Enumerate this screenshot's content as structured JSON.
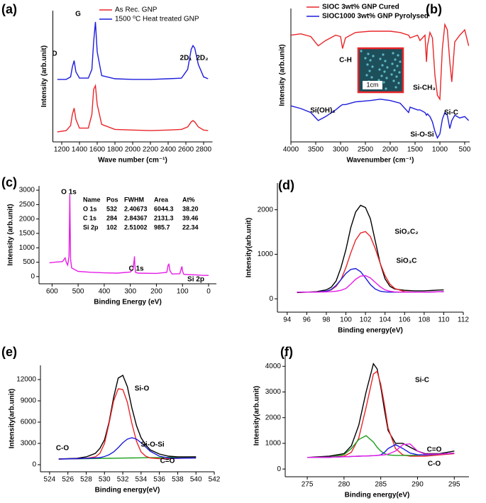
{
  "chart_data": [
    {
      "type": "line",
      "label": "(a)",
      "xlabel": "Wave number (cm⁻¹)",
      "ylabel": "Intensity (arb.unit)",
      "xlim": [
        1100,
        2900
      ],
      "xticks": [
        1200,
        1400,
        1600,
        1800,
        2000,
        2200,
        2400,
        2600,
        2800
      ],
      "ylim": [
        0,
        105
      ],
      "annotations": [
        "D",
        "G",
        "2D₁",
        "2D₂"
      ],
      "x": [
        1150,
        1250,
        1300,
        1320,
        1340,
        1360,
        1400,
        1500,
        1540,
        1560,
        1580,
        1600,
        1650,
        1800,
        2000,
        2200,
        2400,
        2550,
        2620,
        2660,
        2680,
        2700,
        2740,
        2800,
        2850
      ],
      "series": [
        {
          "name": "As Rec. GNP",
          "color": "#e8262a",
          "values": [
            8,
            9,
            13,
            22,
            27,
            18,
            11,
            11,
            22,
            42,
            45,
            30,
            14,
            10,
            9.5,
            9,
            9.5,
            10,
            12,
            16,
            17,
            16,
            12,
            9.5,
            9
          ]
        },
        {
          "name": "1500 ⁰C Heat treated GNP",
          "color": "#1c1cdc",
          "values": [
            50,
            50,
            52,
            60,
            65,
            56,
            51,
            51,
            58,
            80,
            96,
            72,
            53,
            50.5,
            50,
            50,
            50.5,
            51,
            58,
            74,
            77,
            75,
            62,
            52,
            50.5
          ]
        }
      ]
    },
    {
      "type": "line",
      "label": "(b)",
      "xlabel": "Wavenumber (cm⁻¹)",
      "ylabel": "Intensity (arb.unit)",
      "xlim": [
        4000,
        400
      ],
      "xticks": [
        4000,
        3500,
        3000,
        2500,
        2000,
        1500,
        1000,
        500
      ],
      "ylim": [
        0,
        100
      ],
      "annotations": [
        "C-H",
        "Si-CH₃",
        "Si(OH)₂",
        "Si-O-Si",
        "Si-C"
      ],
      "inset_label": "1cm",
      "x": [
        4000,
        3800,
        3600,
        3450,
        3300,
        3100,
        3000,
        2960,
        2900,
        2700,
        2400,
        2200,
        2000,
        1800,
        1630,
        1600,
        1450,
        1400,
        1300,
        1270,
        1250,
        1200,
        1150,
        1100,
        1050,
        1000,
        950,
        900,
        850,
        800,
        760,
        700,
        600,
        500,
        420
      ],
      "series": [
        {
          "name": "SIOC 3wt% GNP Cured",
          "color": "#e8262a",
          "values": [
            80,
            81,
            79,
            72,
            76,
            80,
            79,
            70,
            78,
            82,
            83,
            83,
            83,
            82,
            80,
            78,
            80,
            76,
            80,
            60,
            72,
            82,
            78,
            50,
            35,
            32,
            70,
            88,
            84,
            60,
            45,
            75,
            80,
            84,
            72
          ]
        },
        {
          "name": "SIOC1000 3wt% GNP Pyrolysed",
          "color": "#1c1cdc",
          "values": [
            27,
            25,
            22,
            16,
            19,
            24,
            27,
            28,
            28,
            30,
            31,
            32,
            31,
            29,
            22,
            26,
            24,
            24,
            22,
            20,
            21,
            19,
            15,
            8,
            3,
            6,
            17,
            22,
            20,
            10,
            16,
            20,
            18,
            19,
            16
          ]
        }
      ]
    },
    {
      "type": "line",
      "label": "(c)",
      "xlabel": "Binding Energy (eV)",
      "ylabel": "Intensity (arb.unit)",
      "xlim": [
        650,
        -30
      ],
      "xticks": [
        600,
        500,
        400,
        300,
        200,
        100,
        0
      ],
      "ylim": [
        -250,
        3150
      ],
      "yticks": [
        0,
        500,
        1000,
        1500,
        2000,
        2500,
        3000
      ],
      "annotations": [
        "O 1s",
        "C 1s",
        "Si 2p"
      ],
      "table": {
        "header": [
          "Name",
          "Pos",
          "FWHM",
          "Area",
          "At%"
        ],
        "rows": [
          [
            "O 1s",
            "532",
            "2.40673",
            "6044.3",
            "38.20"
          ],
          [
            "C 1s",
            "284",
            "2.84367",
            "2131.3",
            "39.46"
          ],
          [
            "Si 2p",
            "102",
            "2.51002",
            "985.7",
            "22.34"
          ]
        ]
      },
      "x": [
        610,
        590,
        560,
        550,
        545,
        540,
        535,
        533,
        532,
        531,
        529,
        525,
        500,
        450,
        400,
        350,
        300,
        290,
        285,
        284,
        283,
        280,
        270,
        200,
        160,
        155,
        152,
        148,
        140,
        110,
        104,
        102,
        100,
        95,
        80,
        50,
        20,
        0
      ],
      "series": [
        {
          "color": "#e61ee6",
          "values": [
            480,
            500,
            520,
            650,
            480,
            400,
            700,
            2000,
            2850,
            2000,
            600,
            300,
            180,
            150,
            130,
            120,
            160,
            250,
            600,
            700,
            450,
            150,
            120,
            110,
            150,
            400,
            430,
            200,
            90,
            100,
            300,
            350,
            200,
            80,
            70,
            60,
            40,
            40
          ]
        }
      ]
    },
    {
      "type": "line",
      "label": "(d)",
      "xlabel": "Binding energy(eV)",
      "ylabel": "Intensity(arb.unit)",
      "xlim": [
        93,
        112
      ],
      "xticks": [
        94,
        96,
        98,
        100,
        102,
        104,
        106,
        108,
        110,
        112
      ],
      "ylim": [
        -300,
        2600
      ],
      "yticks": [
        0,
        1000,
        2000
      ],
      "annotations": [
        "SiO₂C₂",
        "SiO₃C"
      ],
      "x": [
        95,
        96,
        97,
        98,
        98.5,
        99,
        99.5,
        100,
        100.5,
        101,
        101.5,
        102,
        102.5,
        103,
        103.5,
        104,
        104.5,
        105,
        106,
        107,
        108,
        109,
        110
      ],
      "series": [
        {
          "color": "#000000",
          "values": [
            140,
            150,
            160,
            200,
            260,
            400,
            700,
            1100,
            1600,
            1950,
            2100,
            2050,
            1800,
            1300,
            800,
            450,
            280,
            220,
            190,
            180,
            180,
            190,
            200
          ]
        },
        {
          "color": "#e8262a",
          "values": [
            150,
            150,
            155,
            170,
            200,
            280,
            430,
            700,
            1030,
            1320,
            1480,
            1510,
            1400,
            1130,
            800,
            520,
            330,
            230,
            160,
            150,
            150,
            155,
            160
          ]
        },
        {
          "color": "#1c1cdc",
          "values": [
            150,
            150,
            152,
            170,
            210,
            300,
            430,
            570,
            660,
            680,
            610,
            470,
            320,
            220,
            170,
            155,
            150,
            150,
            150,
            150,
            150,
            155,
            160
          ]
        },
        {
          "color": "#e61ee6",
          "values": [
            150,
            150,
            150,
            155,
            160,
            170,
            190,
            230,
            330,
            440,
            510,
            520,
            470,
            370,
            270,
            200,
            170,
            155,
            150,
            150,
            150,
            155,
            160
          ]
        }
      ]
    },
    {
      "type": "line",
      "label": "(e)",
      "xlabel": "Binding energy(eV)",
      "ylabel": "Intensity(arb.unit)",
      "xlim": [
        523,
        542
      ],
      "xticks": [
        524,
        526,
        528,
        530,
        532,
        534,
        536,
        538,
        540,
        542
      ],
      "ylim": [
        -1000,
        14000
      ],
      "yticks": [
        0,
        3000,
        6000,
        9000,
        12000
      ],
      "annotations": [
        "Si-O",
        "Si-O-Si",
        "C-O",
        "C=O"
      ],
      "x": [
        525,
        527,
        528,
        529,
        529.5,
        530,
        530.5,
        531,
        531.5,
        532,
        532.5,
        533,
        533.5,
        534,
        534.5,
        535,
        536,
        537,
        538,
        540
      ],
      "series": [
        {
          "color": "#1a9e1a",
          "values": [
            800,
            830,
            850,
            870,
            880,
            890,
            900,
            910,
            920,
            930,
            940,
            950,
            960,
            970,
            980,
            990,
            1010,
            1030,
            1050,
            1100
          ]
        },
        {
          "color": "#000000",
          "values": [
            800,
            900,
            1100,
            1600,
            2300,
            3500,
            6000,
            9500,
            12200,
            12600,
            11000,
            8000,
            5500,
            3800,
            2800,
            2100,
            1500,
            1200,
            1100,
            1100
          ]
        },
        {
          "color": "#e8262a",
          "values": [
            800,
            850,
            900,
            1100,
            1600,
            3000,
            5800,
            9000,
            10700,
            10600,
            8800,
            5800,
            3300,
            1800,
            1200,
            950,
            850,
            850,
            900,
            950
          ]
        },
        {
          "color": "#1c1cdc",
          "values": [
            800,
            850,
            900,
            950,
            1000,
            1150,
            1400,
            1800,
            2400,
            3100,
            3600,
            3800,
            3600,
            3100,
            2500,
            1900,
            1200,
            950,
            900,
            950
          ]
        }
      ]
    },
    {
      "type": "line",
      "label": "(f)",
      "xlabel": "Binding energy(eV)",
      "ylabel": "Intensity(arb.unit)",
      "xlim": [
        272,
        297
      ],
      "xticks": [
        275,
        280,
        285,
        290,
        295
      ],
      "ylim": [
        -300,
        4450
      ],
      "yticks": [
        0,
        1000,
        2000,
        3000,
        4000
      ],
      "annotations": [
        "Si-C",
        "C=O",
        "C-O"
      ],
      "x": [
        275,
        278,
        280,
        281,
        282,
        283,
        284,
        284.5,
        285,
        285.5,
        286,
        287,
        288,
        289,
        290,
        291,
        293,
        295
      ],
      "series": [
        {
          "color": "#000000",
          "values": [
            450,
            500,
            600,
            900,
            1700,
            3000,
            4100,
            3900,
            3200,
            2300,
            1500,
            1000,
            1000,
            850,
            700,
            600,
            600,
            700
          ]
        },
        {
          "color": "#e8262a",
          "values": [
            450,
            460,
            500,
            650,
            1200,
            2400,
            3700,
            3800,
            3300,
            2500,
            1600,
            800,
            550,
            500,
            500,
            500,
            550,
            600
          ]
        },
        {
          "color": "#1a9e1a",
          "values": [
            450,
            460,
            560,
            800,
            1150,
            1300,
            1050,
            850,
            700,
            600,
            550,
            530,
            530,
            530,
            540,
            550,
            580,
            620
          ]
        },
        {
          "color": "#1c1cdc",
          "values": [
            450,
            460,
            480,
            490,
            500,
            510,
            520,
            530,
            550,
            650,
            800,
            950,
            800,
            620,
            560,
            550,
            580,
            620
          ]
        },
        {
          "color": "#e61ee6",
          "values": [
            450,
            460,
            480,
            490,
            500,
            510,
            520,
            530,
            540,
            550,
            580,
            700,
            950,
            980,
            700,
            580,
            580,
            620
          ]
        }
      ]
    }
  ]
}
